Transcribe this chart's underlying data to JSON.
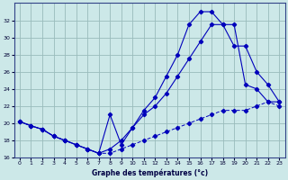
{
  "title": "Graphe des températures (°c)",
  "background_color": "#cce8e8",
  "line_color": "#0000bb",
  "grid_color": "#99bbbb",
  "xlim": [
    -0.5,
    23.5
  ],
  "ylim": [
    16,
    34
  ],
  "xticks": [
    0,
    1,
    2,
    3,
    4,
    5,
    6,
    7,
    8,
    9,
    10,
    11,
    12,
    13,
    14,
    15,
    16,
    17,
    18,
    19,
    20,
    21,
    22,
    23
  ],
  "yticks": [
    16,
    18,
    20,
    22,
    24,
    26,
    28,
    30,
    32
  ],
  "line1_x": [
    0,
    1,
    2,
    3,
    4,
    5,
    6,
    7,
    8,
    9,
    10,
    11,
    12,
    13,
    14,
    15,
    16,
    17,
    18,
    19,
    20,
    21,
    22,
    23
  ],
  "line1_y": [
    20.2,
    19.7,
    19.3,
    18.5,
    18.0,
    17.5,
    17.0,
    16.5,
    21.0,
    17.5,
    19.5,
    21.5,
    23.0,
    25.5,
    28.0,
    31.5,
    33.0,
    33.0,
    31.5,
    31.5,
    24.5,
    24.0,
    22.5,
    22.5
  ],
  "line2_x": [
    0,
    1,
    2,
    3,
    4,
    5,
    6,
    7,
    8,
    9,
    10,
    11,
    12,
    13,
    14,
    15,
    16,
    17,
    18,
    19,
    20,
    21,
    22,
    23
  ],
  "line2_y": [
    20.2,
    19.7,
    19.3,
    18.5,
    18.0,
    17.5,
    17.0,
    16.5,
    17.0,
    18.0,
    19.5,
    21.0,
    22.0,
    23.5,
    25.5,
    27.5,
    29.5,
    31.5,
    31.5,
    29.0,
    29.0,
    26.0,
    24.5,
    22.5
  ],
  "line3_x": [
    0,
    1,
    2,
    3,
    4,
    5,
    6,
    7,
    8,
    9,
    10,
    11,
    12,
    13,
    14,
    15,
    16,
    17,
    18,
    19,
    20,
    21,
    22,
    23
  ],
  "line3_y": [
    20.2,
    19.7,
    19.3,
    18.5,
    18.0,
    17.5,
    17.0,
    16.5,
    16.5,
    17.0,
    17.5,
    18.0,
    18.5,
    19.0,
    19.5,
    20.0,
    20.5,
    21.0,
    21.5,
    21.5,
    21.5,
    22.0,
    22.5,
    22.0
  ]
}
